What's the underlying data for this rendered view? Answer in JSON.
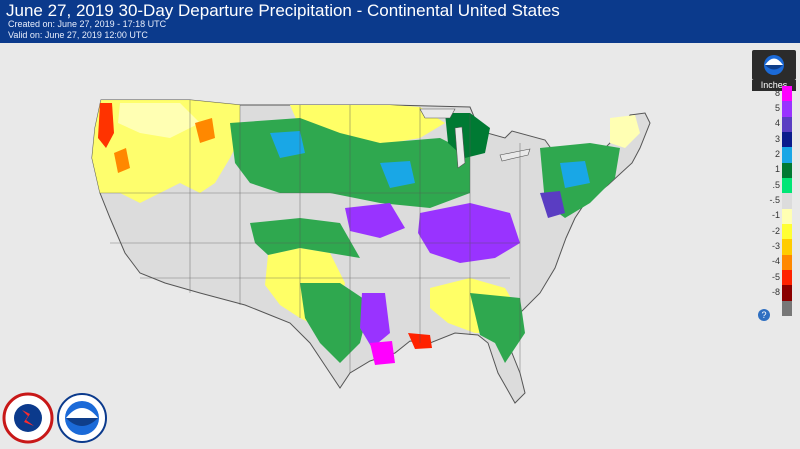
{
  "header": {
    "title": "June 27, 2019 30-Day Departure Precipitation - Continental United States",
    "created": "Created on: June 27, 2019 - 17:18 UTC",
    "valid": "Valid on: June 27, 2019 12:00 UTC"
  },
  "legend": {
    "units": "Inches",
    "entries": [
      {
        "label": "8",
        "color": "#ff00ff"
      },
      {
        "label": "5",
        "color": "#9933ff"
      },
      {
        "label": "4",
        "color": "#5a3dc2"
      },
      {
        "label": "3",
        "color": "#0b1c8c"
      },
      {
        "label": "2",
        "color": "#19a7e6"
      },
      {
        "label": "1",
        "color": "#007a33"
      },
      {
        "label": ".5",
        "color": "#00e676"
      },
      {
        "label": "-.5",
        "color": "#dcdcdc"
      },
      {
        "label": "-1",
        "color": "#ffffb3"
      },
      {
        "label": "-2",
        "color": "#ffff33"
      },
      {
        "label": "-3",
        "color": "#ffcc00"
      },
      {
        "label": "-4",
        "color": "#ff8800"
      },
      {
        "label": "-5",
        "color": "#ff2200"
      },
      {
        "label": "-8",
        "color": "#8b0000"
      },
      {
        "label": "",
        "color": "#777777"
      }
    ],
    "help_icon": "?"
  },
  "icons": {
    "logo_nws": "national-weather-service-logo",
    "logo_noaa": "noaa-logo",
    "legend_logo": "noaa-logo-small"
  }
}
